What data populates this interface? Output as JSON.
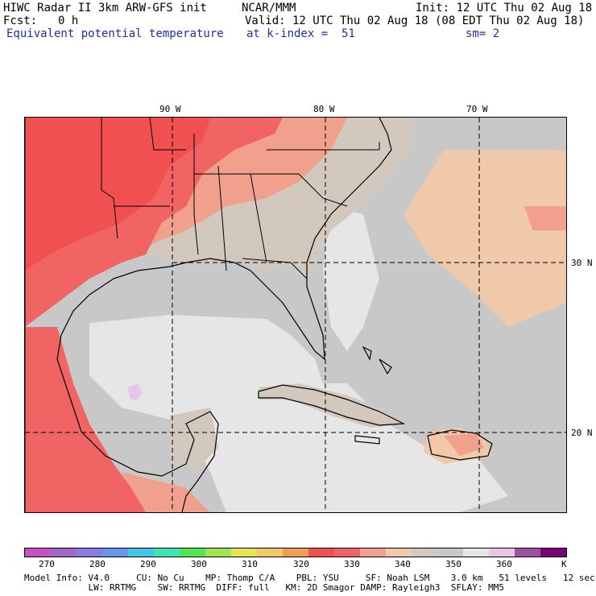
{
  "header": {
    "line1_left": "HIWC Radar II 3km ARW-GFS init",
    "line1_mid": "NCAR/MMM",
    "line1_right": "Init: 12 UTC Thu 02 Aug 18",
    "fcst_label": "Fcst:",
    "fcst_value": "0 h",
    "valid": "Valid: 12 UTC Thu 02 Aug 18 (08 EDT Thu 02 Aug 18)",
    "field": "Equivalent potential temperature",
    "level": "at k-index =  51",
    "smoothing": "sm= 2"
  },
  "map": {
    "lon_labels": [
      "90 W",
      "80 W",
      "70 W"
    ],
    "lat_labels": [
      "30 N",
      "20 N"
    ]
  },
  "colorbar": {
    "colors": [
      "#c84ec8",
      "#a066c8",
      "#8a7ae6",
      "#6496f0",
      "#3cc8e6",
      "#3ce6b4",
      "#50e650",
      "#a0e650",
      "#e6e650",
      "#f0c864",
      "#f0a050",
      "#f05050",
      "#f06464",
      "#f0a08c",
      "#f0c8aa",
      "#d2c8be",
      "#c8c8c8",
      "#e6e6e6",
      "#e6c8e6",
      "#a050a0",
      "#780078"
    ],
    "tick_labels": [
      "270",
      "280",
      "290",
      "300",
      "310",
      "320",
      "330",
      "340",
      "350",
      "360"
    ],
    "unit": "K"
  },
  "footer": {
    "line1": "Model Info: V4.0     CU: No Cu    MP: Thomp C/A    PBL: YSU     SF: Noah LSM    3.0 km   51 levels   12 sec",
    "line2": "            LW: RRTMG    SW: RRTMG  DIFF: full   KM: 2D Smagor DAMP: Rayleigh3  SFLAY: MM5"
  }
}
